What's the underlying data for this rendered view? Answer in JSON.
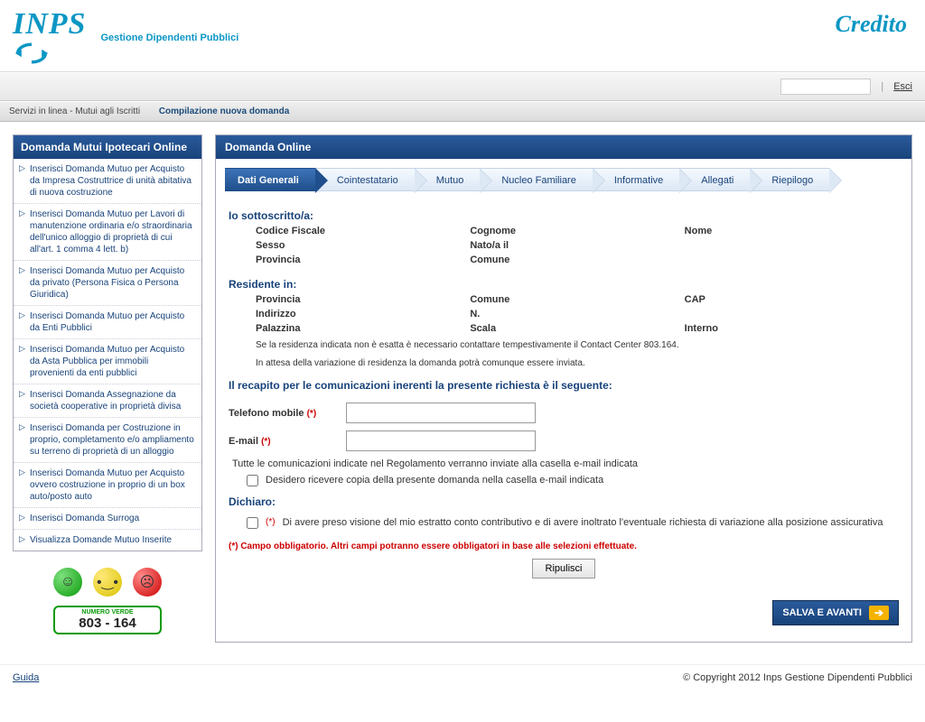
{
  "brand": {
    "name": "INPS",
    "subtitle": "Gestione Dipendenti Pubblici",
    "right": "Credito",
    "color": "#0d97c4"
  },
  "topbar": {
    "search_placeholder": "",
    "esci": "Esci"
  },
  "breadcrumb": {
    "a": "Servizi in linea - Mutui agli Iscritti",
    "b": "Compilazione nuova domanda"
  },
  "sidebar": {
    "title": "Domanda Mutui Ipotecari Online",
    "items": [
      "Inserisci Domanda Mutuo per Acquisto da Impresa Costruttrice di unità abitativa di nuova costruzione",
      "Inserisci Domanda Mutuo per Lavori di manutenzione ordinaria e/o straordinaria dell'unico alloggio di proprietà di cui all'art. 1 comma 4 lett. b)",
      "Inserisci Domanda Mutuo per Acquisto da privato (Persona Fisica o Persona Giuridica)",
      "Inserisci Domanda Mutuo per Acquisto da Enti Pubblici",
      "Inserisci Domanda Mutuo per Acquisto da Asta Pubblica per immobili provenienti da enti pubblici",
      "Inserisci Domanda Assegnazione da società cooperative in proprietà divisa",
      "Inserisci Domanda per Costruzione in proprio, completamento e/o ampliamento su terreno di proprietà di un alloggio",
      "Inserisci Domanda Mutuo per Acquisto ovvero costruzione in proprio di un box auto/posto auto",
      "Inserisci Domanda Surroga",
      "Visualizza Domande Mutuo Inserite"
    ],
    "numero_verde": {
      "lbl": "NUMERO VERDE",
      "num": "803 - 164"
    }
  },
  "main": {
    "title": "Domanda Online",
    "steps": [
      "Dati Generali",
      "Cointestatario",
      "Mutuo",
      "Nucleo Familiare",
      "Informative",
      "Allegati",
      "Riepilogo"
    ],
    "active_step": 0,
    "s1": {
      "title": "Io sottoscritto/a:",
      "rows": [
        [
          "Codice Fiscale",
          "Cognome",
          "Nome"
        ],
        [
          "Sesso",
          "Nato/a il",
          ""
        ],
        [
          "Provincia",
          "Comune",
          ""
        ]
      ]
    },
    "s2": {
      "title": "Residente in:",
      "rows": [
        [
          "Provincia",
          "Comune",
          "CAP"
        ],
        [
          "Indirizzo",
          "N.",
          ""
        ],
        [
          "Palazzina",
          "Scala",
          "Interno"
        ]
      ],
      "note1": "Se la residenza indicata non è esatta è necessario contattare tempestivamente il Contact Center 803.164.",
      "note2": "In attesa della variazione di residenza la domanda potrà comunque essere inviata."
    },
    "s3": {
      "title": "Il recapito per le comunicazioni inerenti la presente richiesta è il seguente:",
      "tel_label": "Telefono mobile",
      "email_label": "E-mail",
      "req": "(*)",
      "chk1": "Tutte le comunicazioni indicate nel Regolamento verranno inviate alla casella e-mail indicata",
      "chk2": "Desidero ricevere copia della presente domanda nella casella e-mail indicata"
    },
    "s4": {
      "title": "Dichiaro:",
      "text": "Di avere preso visione del mio estratto conto contributivo e di avere inoltrato l'eventuale richiesta di variazione alla posizione assicurativa"
    },
    "warn": "(*) Campo obbligatorio. Altri campi potranno essere obbligatori in base alle selezioni effettuate.",
    "btn_reset": "Ripulisci",
    "btn_next": "SALVA E AVANTI"
  },
  "footer": {
    "left": "Guida",
    "right": "© Copyright 2012 Inps Gestione Dipendenti Pubblici"
  }
}
